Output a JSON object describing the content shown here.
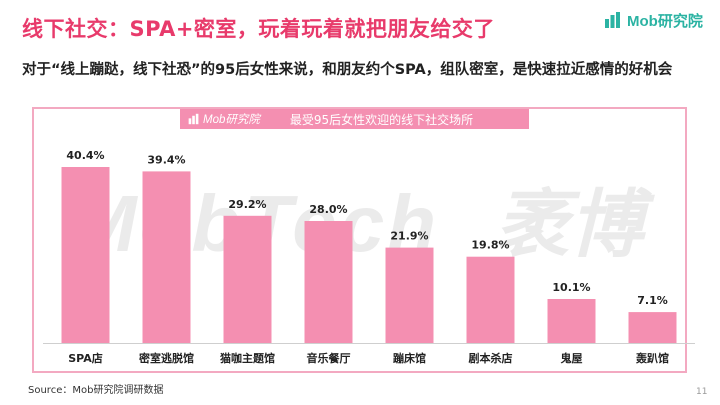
{
  "slide": {
    "title": "线下社交：SPA+密室，玩着玩着就把朋友给交了",
    "subtitle": "对于“线上蹦跶，线下社恐”的95后女性来说，和朋友约个SPA，组队密室，是快速拉近感情的好机会",
    "logo_text": "Mob研究院",
    "watermark_text": "MobTech",
    "watermark_cn": "袤博",
    "source": "Source：Mob研究院调研数据",
    "page_number": "11"
  },
  "chart_header": {
    "logo_text": "Mob研究院",
    "title": "最受95后女性欢迎的线下社交场所"
  },
  "colors": {
    "title": "#e83a6b",
    "bar": "#f48fb1",
    "frame": "#f3a9c1",
    "brand": "#2bb3a3"
  },
  "chart_data": {
    "type": "bar",
    "title": "最受95后女性欢迎的线下社交场所",
    "categories": [
      "SPA店",
      "密室逃脱馆",
      "猫咖主题馆",
      "音乐餐厅",
      "蹦床馆",
      "剧本杀店",
      "鬼屋",
      "轰趴馆"
    ],
    "values": [
      40.4,
      39.4,
      29.2,
      28.0,
      21.9,
      19.8,
      10.1,
      7.1
    ],
    "value_labels": [
      "40.4%",
      "39.4%",
      "29.2%",
      "28.0%",
      "21.9%",
      "19.8%",
      "10.1%",
      "7.1%"
    ],
    "ylim": [
      0,
      45
    ],
    "grid": false,
    "legend": "none",
    "xlabel": "",
    "ylabel": ""
  }
}
